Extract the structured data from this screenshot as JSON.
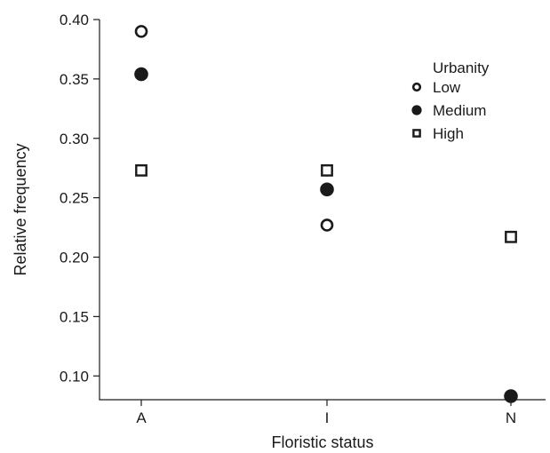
{
  "chart_data": {
    "type": "scatter",
    "title": "",
    "xlabel": "Floristic status",
    "ylabel": "Relative frequency",
    "categories": [
      "A",
      "I",
      "N"
    ],
    "ylim": [
      0.08,
      0.4
    ],
    "yticks": [
      "0.10",
      "0.15",
      "0.20",
      "0.25",
      "0.30",
      "0.35",
      "0.40"
    ],
    "grid": false,
    "legend": {
      "title": "Urbanity",
      "position": "top-right"
    },
    "series": [
      {
        "name": "Low",
        "marker": "open-circle",
        "values": [
          0.39,
          0.227,
          null
        ]
      },
      {
        "name": "Medium",
        "marker": "filled-circle",
        "values": [
          0.354,
          0.257,
          0.083
        ]
      },
      {
        "name": "High",
        "marker": "open-square",
        "values": [
          0.273,
          0.273,
          0.217
        ]
      }
    ]
  }
}
